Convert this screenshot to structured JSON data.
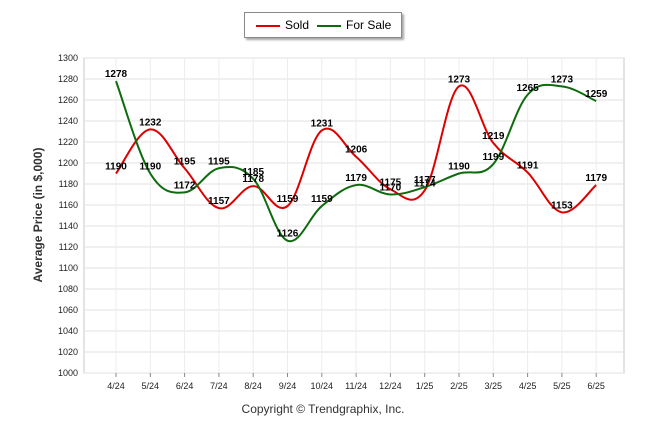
{
  "chart_data": {
    "type": "line",
    "categories": [
      "4/24",
      "5/24",
      "6/24",
      "7/24",
      "8/24",
      "9/24",
      "10/24",
      "11/24",
      "12/24",
      "1/25",
      "2/25",
      "3/25",
      "4/25",
      "5/25",
      "6/25"
    ],
    "series": [
      {
        "name": "Sold",
        "color": "#dd0000",
        "values": [
          1190,
          1232,
          1195,
          1157,
          1178,
          1159,
          1231,
          1206,
          1175,
          1174,
          1273,
          1219,
          1191,
          1153,
          1179
        ]
      },
      {
        "name": "For Sale",
        "color": "#0d6b0d",
        "values": [
          1278,
          1190,
          1172,
          1195,
          1185,
          1126,
          1159,
          1179,
          1170,
          1177,
          1190,
          1199,
          1265,
          1273,
          1259
        ]
      }
    ],
    "ylabel": "Average Price (in $,000)",
    "xlabel": "",
    "ylim": [
      1000,
      1300
    ],
    "yticks": [
      1000,
      1020,
      1040,
      1060,
      1080,
      1100,
      1120,
      1140,
      1160,
      1180,
      1200,
      1220,
      1240,
      1260,
      1280,
      1300
    ],
    "grid": true,
    "legend_position": "top-center",
    "smooth": true
  },
  "footer": {
    "copyright": "Copyright © Trendgraphix, Inc."
  }
}
